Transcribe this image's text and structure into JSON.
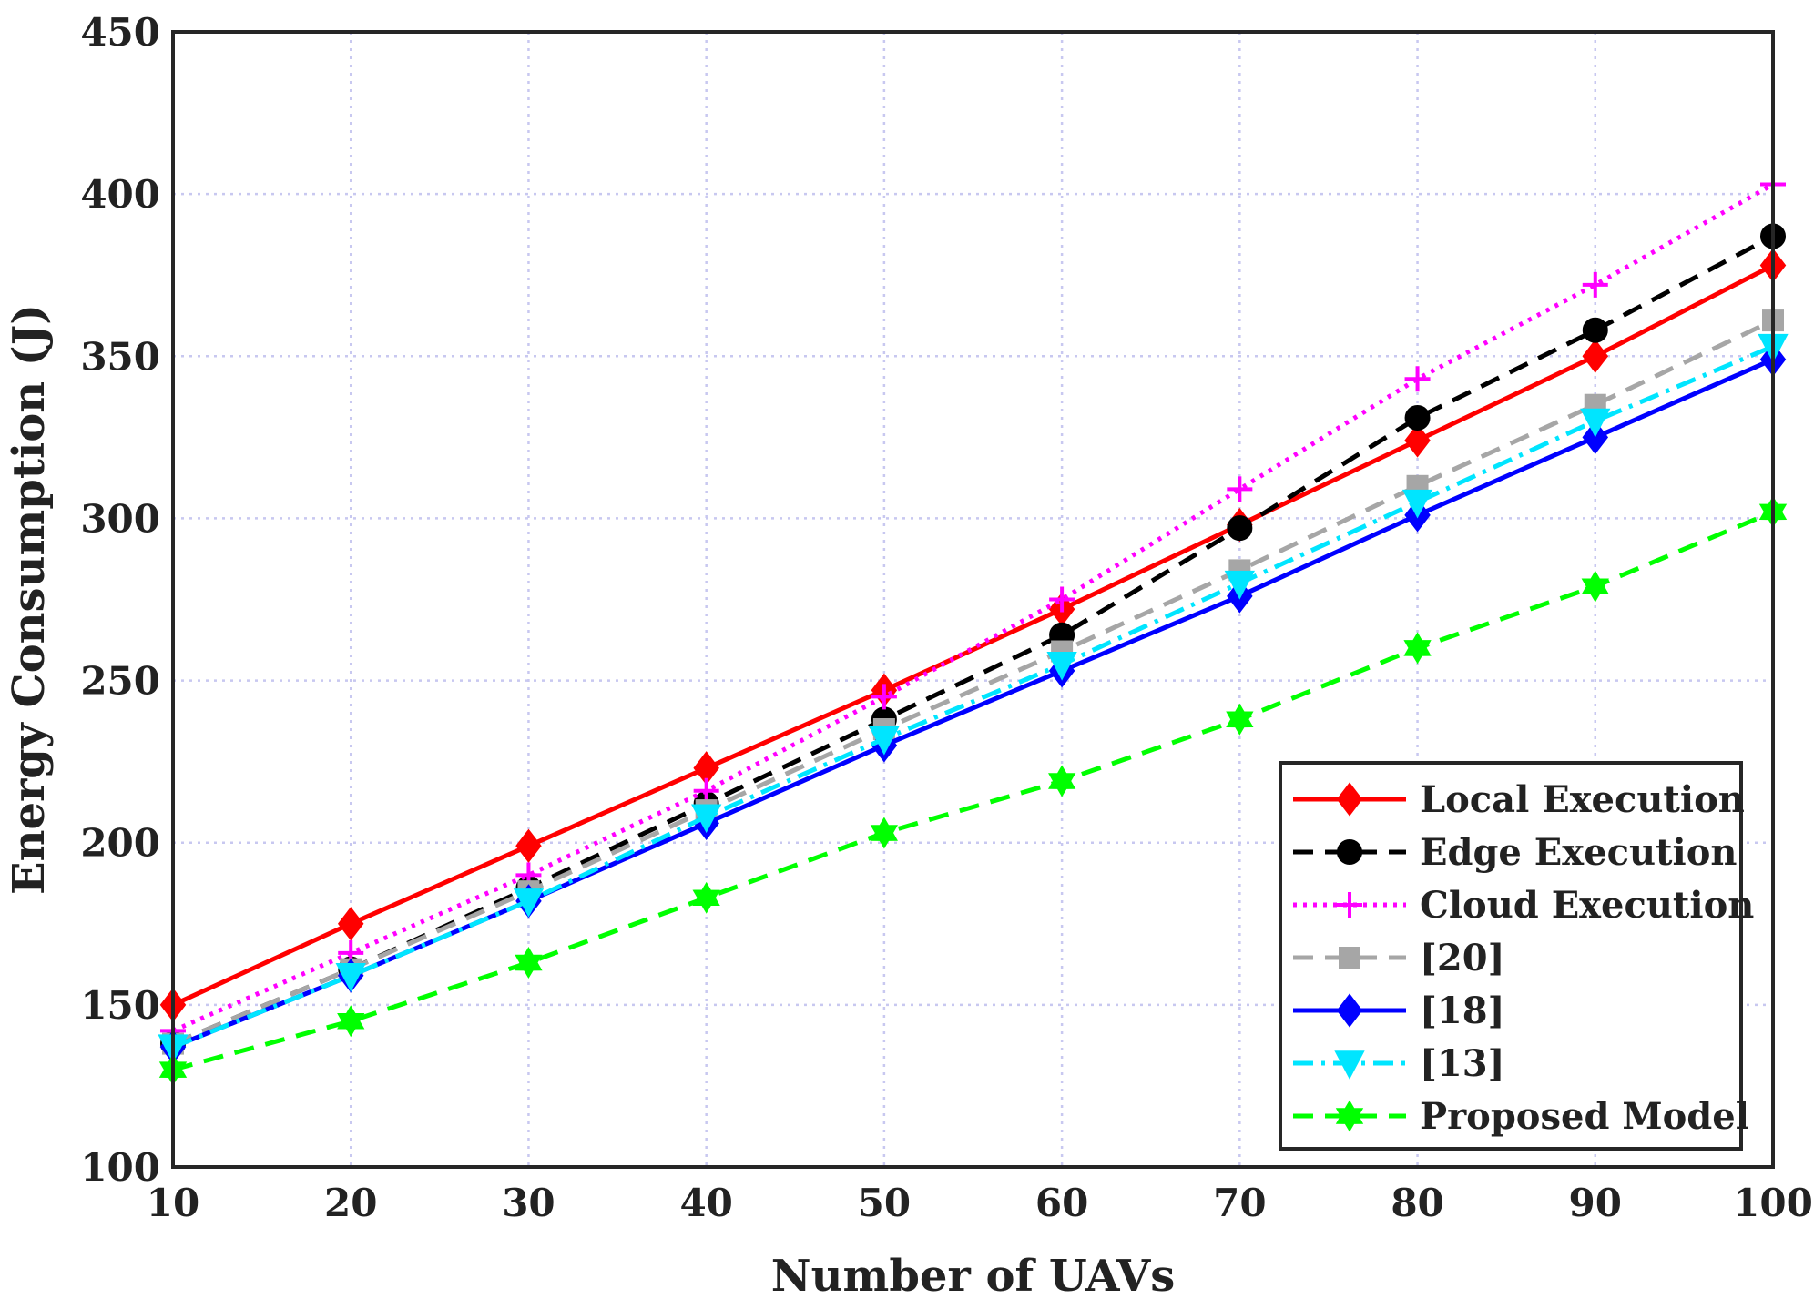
{
  "chart_data": {
    "type": "line",
    "title": "",
    "xlabel": "Number of UAVs",
    "ylabel": "Energy Consumption (J)",
    "x": [
      10,
      20,
      30,
      40,
      50,
      60,
      70,
      80,
      90,
      100
    ],
    "xlim": [
      10,
      100
    ],
    "ylim": [
      100,
      450
    ],
    "xticks": [
      10,
      20,
      30,
      40,
      50,
      60,
      70,
      80,
      90,
      100
    ],
    "yticks": [
      100,
      150,
      200,
      250,
      300,
      350,
      400,
      450
    ],
    "grid": true,
    "legend_position": "bottom-right",
    "series": [
      {
        "name": "Local Execution",
        "color": "#ff0000",
        "line_style": "solid",
        "marker": "diamond",
        "values": [
          150,
          175,
          199,
          223,
          247,
          272,
          298,
          324,
          350,
          378
        ]
      },
      {
        "name": "Edge Execution",
        "color": "#000000",
        "line_style": "dashed",
        "marker": "circle",
        "values": [
          138,
          161,
          186,
          212,
          238,
          264,
          297,
          331,
          358,
          387
        ]
      },
      {
        "name": "Cloud Execution",
        "color": "#ff00ff",
        "line_style": "dotted",
        "marker": "plus",
        "values": [
          142,
          166,
          190,
          216,
          245,
          275,
          309,
          343,
          372,
          403
        ]
      },
      {
        "name": "[20]",
        "color": "#a6a6a6",
        "line_style": "dashed",
        "marker": "square",
        "values": [
          138,
          161,
          185,
          210,
          235,
          259,
          284,
          310,
          335,
          361
        ]
      },
      {
        "name": "[18]",
        "color": "#0000ff",
        "line_style": "solid",
        "marker": "diamond",
        "values": [
          137,
          159,
          182,
          206,
          230,
          253,
          276,
          301,
          325,
          349
        ]
      },
      {
        "name": "[13]",
        "color": "#00e5ff",
        "line_style": "dashdot",
        "marker": "triangle-down",
        "values": [
          137,
          159,
          182,
          208,
          232,
          255,
          280,
          305,
          330,
          353
        ]
      },
      {
        "name": "Proposed Model",
        "color": "#00ff00",
        "line_style": "dashed",
        "marker": "hexagram",
        "values": [
          130,
          145,
          163,
          183,
          203,
          219,
          238,
          260,
          279,
          302
        ]
      }
    ]
  }
}
